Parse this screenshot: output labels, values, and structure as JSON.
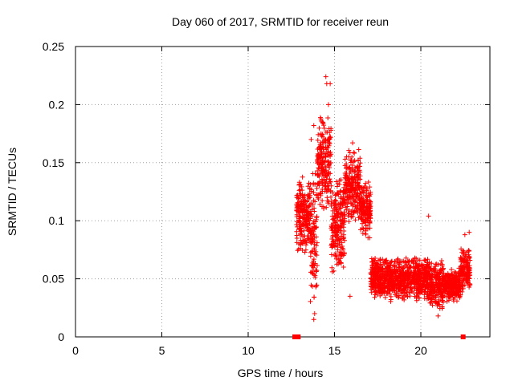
{
  "chart_data": {
    "type": "scatter",
    "title": "Day 060 of 2017, SRMTID for receiver reun",
    "xlabel": "GPS time / hours",
    "ylabel": "SRMTID / TECUs",
    "xlim": [
      0,
      24
    ],
    "ylim": [
      0,
      0.25
    ],
    "xticks": [
      0,
      5,
      10,
      15,
      20
    ],
    "xtick_labels": [
      "0",
      "5",
      "10",
      "15",
      "20"
    ],
    "yticks": [
      0,
      0.05,
      0.1,
      0.15,
      0.2,
      0.25
    ],
    "ytick_labels": [
      "0",
      "0.05",
      "0.1",
      "0.15",
      "0.2",
      "0.25"
    ],
    "grid": true,
    "marker": "+",
    "color": "#ff0000",
    "baseline_marks_x": [
      12.7,
      12.9,
      22.45
    ],
    "segments": [
      {
        "x_start": 12.8,
        "x_end": 13.6,
        "y_center": 0.105,
        "spread": 0.035
      },
      {
        "x_start": 13.6,
        "x_end": 14.0,
        "y_center": 0.085,
        "spread": 0.06
      },
      {
        "x_start": 14.0,
        "x_end": 14.8,
        "y_center": 0.15,
        "spread": 0.045
      },
      {
        "x_start": 14.8,
        "x_end": 15.6,
        "y_center": 0.095,
        "spread": 0.045
      },
      {
        "x_start": 15.6,
        "x_end": 16.5,
        "y_center": 0.13,
        "spread": 0.035
      },
      {
        "x_start": 16.5,
        "x_end": 17.1,
        "y_center": 0.11,
        "spread": 0.025
      },
      {
        "x_start": 17.1,
        "x_end": 20.5,
        "y_center": 0.05,
        "spread": 0.02
      },
      {
        "x_start": 20.5,
        "x_end": 21.3,
        "y_center": 0.045,
        "spread": 0.022
      },
      {
        "x_start": 21.3,
        "x_end": 22.3,
        "y_center": 0.045,
        "spread": 0.015
      },
      {
        "x_start": 22.3,
        "x_end": 22.85,
        "y_center": 0.058,
        "spread": 0.02
      }
    ],
    "outliers": [
      {
        "x": 14.5,
        "y": 0.224
      },
      {
        "x": 14.55,
        "y": 0.218
      },
      {
        "x": 14.75,
        "y": 0.218
      },
      {
        "x": 14.65,
        "y": 0.2
      },
      {
        "x": 14.3,
        "y": 0.185
      },
      {
        "x": 13.8,
        "y": 0.182
      },
      {
        "x": 13.65,
        "y": 0.17
      },
      {
        "x": 16.05,
        "y": 0.167
      },
      {
        "x": 13.85,
        "y": 0.02
      },
      {
        "x": 13.8,
        "y": 0.015
      },
      {
        "x": 15.9,
        "y": 0.035
      },
      {
        "x": 20.45,
        "y": 0.104
      },
      {
        "x": 21.0,
        "y": 0.018
      },
      {
        "x": 22.8,
        "y": 0.09
      },
      {
        "x": 22.55,
        "y": 0.088
      },
      {
        "x": 15.7,
        "y": 0.155
      },
      {
        "x": 15.3,
        "y": 0.065
      }
    ]
  }
}
